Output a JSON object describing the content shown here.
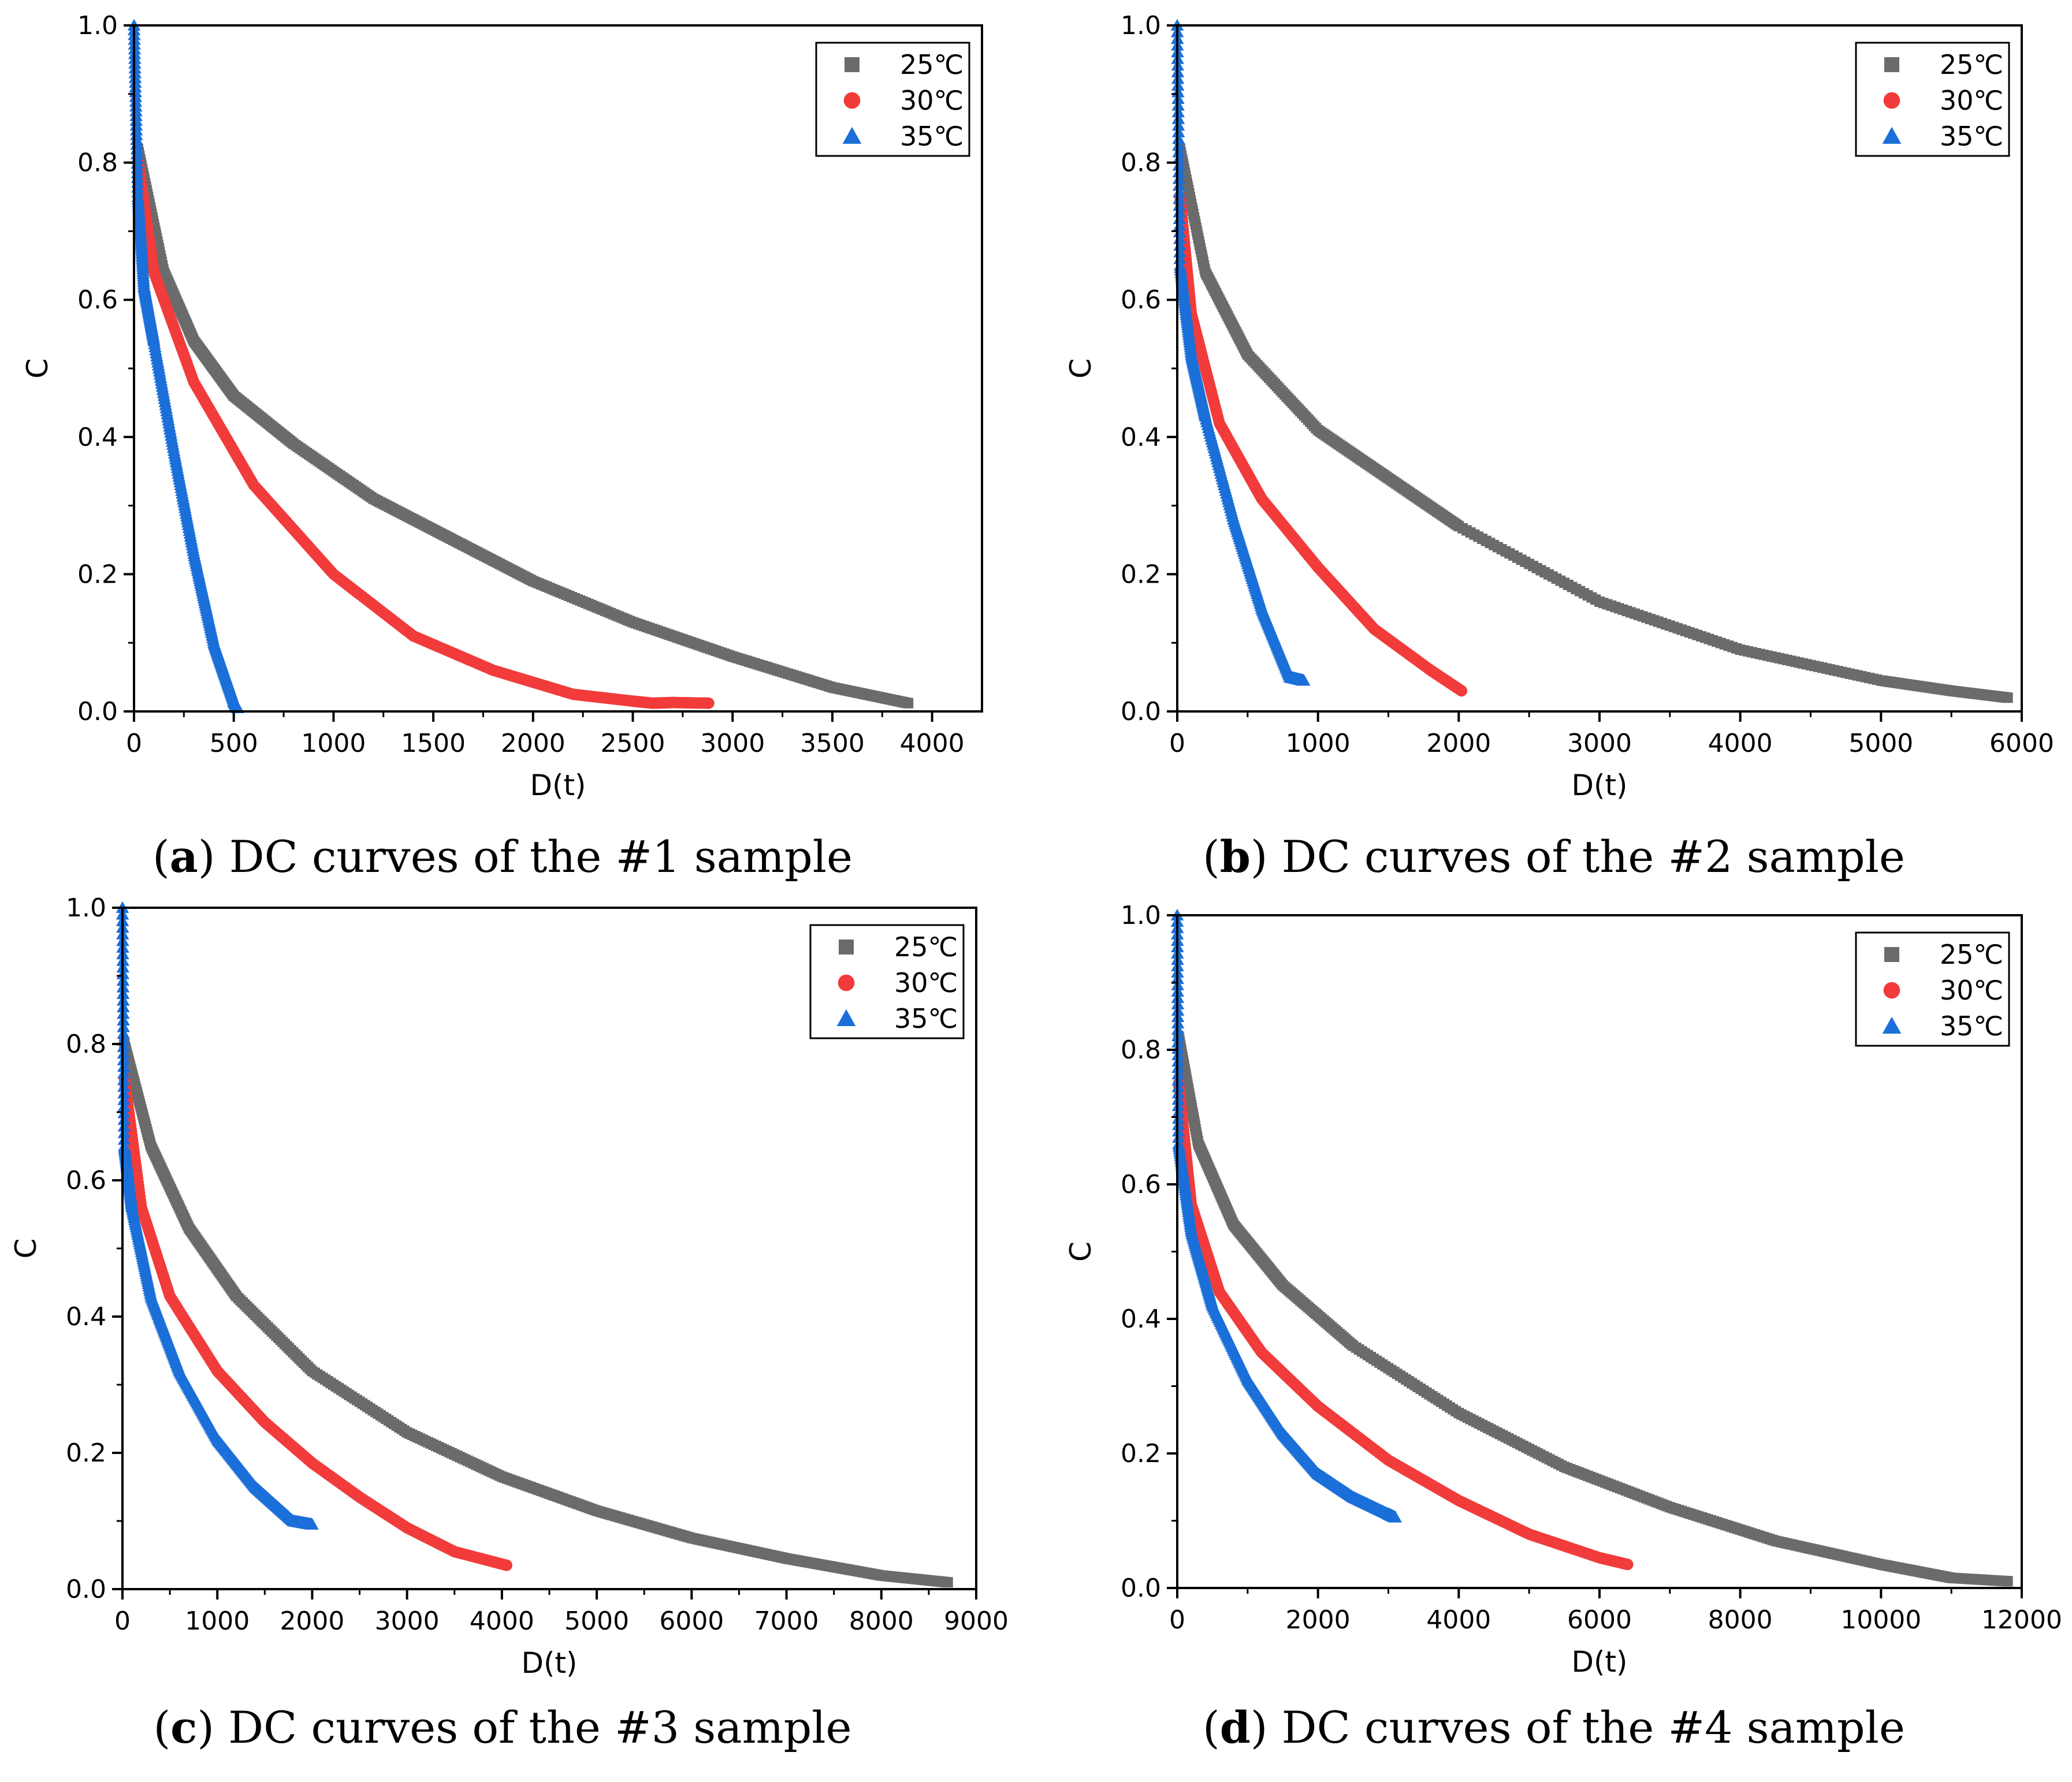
{
  "colors": {
    "25": "#6b6b6b",
    "30": "#f23b3b",
    "35": "#1a6fd8"
  },
  "legend": [
    {
      "label": "25℃",
      "marker": "square",
      "color": "#6b6b6b"
    },
    {
      "label": "30℃",
      "marker": "circle",
      "color": "#f23b3b"
    },
    {
      "label": "35℃",
      "marker": "triangle",
      "color": "#1a6fd8"
    }
  ],
  "chart_data": [
    {
      "type": "scatter",
      "caption_letter": "a",
      "caption_text": " DC curves of the #1 sample",
      "xlabel": "D(t)",
      "ylabel": "C",
      "xlim": [
        0,
        4250
      ],
      "ylim": [
        0,
        1.0
      ],
      "xticks": [
        0,
        500,
        1000,
        1500,
        2000,
        2500,
        3000,
        3500,
        4000
      ],
      "yticks": [
        "0.0",
        "0.2",
        "0.4",
        "0.6",
        "0.8",
        "1.0"
      ],
      "legend_position": "top-right",
      "series": [
        {
          "name": "25℃",
          "marker": "square",
          "color": "#6b6b6b",
          "x": [
            20,
            150,
            300,
            500,
            800,
            1200,
            1600,
            2000,
            2500,
            3000,
            3500,
            3880
          ],
          "y": [
            0.82,
            0.64,
            0.54,
            0.46,
            0.39,
            0.31,
            0.25,
            0.19,
            0.13,
            0.08,
            0.035,
            0.012
          ]
        },
        {
          "name": "30℃",
          "marker": "circle",
          "color": "#f23b3b",
          "x": [
            20,
            100,
            300,
            600,
            1000,
            1400,
            1800,
            2200,
            2500,
            2600,
            2700,
            2880
          ],
          "y": [
            0.8,
            0.64,
            0.48,
            0.33,
            0.2,
            0.11,
            0.06,
            0.025,
            0.015,
            0.012,
            0.013,
            0.012
          ]
        },
        {
          "name": "35℃",
          "marker": "triangle",
          "color": "#1a6fd8",
          "x": [
            0,
            20,
            50,
            100,
            200,
            300,
            400,
            500,
            520
          ],
          "y": [
            1.0,
            0.75,
            0.62,
            0.54,
            0.38,
            0.23,
            0.1,
            0.015,
            0.005
          ]
        }
      ]
    },
    {
      "type": "scatter",
      "caption_letter": "b",
      "caption_text": " DC curves of the #2 sample",
      "xlabel": "D(t)",
      "ylabel": "C",
      "xlim": [
        0,
        6000
      ],
      "ylim": [
        0,
        1.0
      ],
      "xticks": [
        0,
        1000,
        2000,
        3000,
        4000,
        5000,
        6000
      ],
      "yticks": [
        "0.0",
        "0.2",
        "0.4",
        "0.6",
        "0.8",
        "1.0"
      ],
      "legend_position": "top-right",
      "series": [
        {
          "name": "25℃",
          "marker": "square",
          "color": "#6b6b6b",
          "x": [
            20,
            200,
            500,
            1000,
            1500,
            2000,
            3000,
            4000,
            5000,
            5500,
            5900
          ],
          "y": [
            0.82,
            0.64,
            0.52,
            0.41,
            0.34,
            0.27,
            0.16,
            0.09,
            0.045,
            0.03,
            0.02
          ]
        },
        {
          "name": "30℃",
          "marker": "circle",
          "color": "#f23b3b",
          "x": [
            20,
            100,
            300,
            600,
            1000,
            1400,
            1800,
            2020
          ],
          "y": [
            0.75,
            0.58,
            0.42,
            0.31,
            0.21,
            0.12,
            0.06,
            0.03
          ]
        },
        {
          "name": "35℃",
          "marker": "triangle",
          "color": "#1a6fd8",
          "x": [
            0,
            20,
            100,
            200,
            400,
            600,
            800,
            900
          ],
          "y": [
            1.0,
            0.65,
            0.52,
            0.43,
            0.28,
            0.15,
            0.05,
            0.045
          ]
        }
      ]
    },
    {
      "type": "scatter",
      "caption_letter": "c",
      "caption_text": " DC curves of the #3 sample",
      "xlabel": "D(t)",
      "ylabel": "C",
      "xlim": [
        0,
        9000
      ],
      "ylim": [
        0,
        1.0
      ],
      "xticks": [
        0,
        1000,
        2000,
        3000,
        4000,
        5000,
        6000,
        7000,
        8000,
        9000
      ],
      "yticks": [
        "0.0",
        "0.2",
        "0.4",
        "0.6",
        "0.8",
        "1.0"
      ],
      "legend_position": "top-right",
      "series": [
        {
          "name": "25℃",
          "marker": "square",
          "color": "#6b6b6b",
          "x": [
            20,
            300,
            700,
            1200,
            2000,
            3000,
            4000,
            5000,
            6000,
            7000,
            8000,
            8700
          ],
          "y": [
            0.8,
            0.65,
            0.53,
            0.43,
            0.32,
            0.23,
            0.165,
            0.115,
            0.075,
            0.045,
            0.02,
            0.01
          ]
        },
        {
          "name": "30℃",
          "marker": "circle",
          "color": "#f23b3b",
          "x": [
            20,
            200,
            500,
            1000,
            1500,
            2000,
            2500,
            3000,
            3500,
            4050
          ],
          "y": [
            0.75,
            0.56,
            0.43,
            0.32,
            0.245,
            0.185,
            0.135,
            0.09,
            0.055,
            0.035
          ]
        },
        {
          "name": "35℃",
          "marker": "triangle",
          "color": "#1a6fd8",
          "x": [
            0,
            20,
            100,
            300,
            600,
            1000,
            1400,
            1800,
            2000
          ],
          "y": [
            1.0,
            0.65,
            0.56,
            0.43,
            0.32,
            0.22,
            0.15,
            0.1,
            0.095
          ]
        }
      ]
    },
    {
      "type": "scatter",
      "caption_letter": "d",
      "caption_text": " DC curves of the #4 sample",
      "xlabel": "D(t)",
      "ylabel": "C",
      "xlim": [
        0,
        12000
      ],
      "ylim": [
        0,
        1.0
      ],
      "xticks": [
        0,
        2000,
        4000,
        6000,
        8000,
        10000,
        12000
      ],
      "yticks": [
        "0.0",
        "0.2",
        "0.4",
        "0.6",
        "0.8",
        "1.0"
      ],
      "legend_position": "top-right",
      "series": [
        {
          "name": "25℃",
          "marker": "square",
          "color": "#6b6b6b",
          "x": [
            20,
            300,
            800,
            1500,
            2500,
            4000,
            5500,
            7000,
            8500,
            10000,
            11000,
            11800
          ],
          "y": [
            0.82,
            0.66,
            0.54,
            0.45,
            0.36,
            0.26,
            0.18,
            0.12,
            0.07,
            0.035,
            0.015,
            0.01
          ]
        },
        {
          "name": "30℃",
          "marker": "circle",
          "color": "#f23b3b",
          "x": [
            20,
            200,
            600,
            1200,
            2000,
            3000,
            4000,
            5000,
            6000,
            6400
          ],
          "y": [
            0.75,
            0.57,
            0.44,
            0.35,
            0.27,
            0.19,
            0.13,
            0.08,
            0.045,
            0.035
          ]
        },
        {
          "name": "35℃",
          "marker": "triangle",
          "color": "#1a6fd8",
          "x": [
            0,
            20,
            200,
            500,
            1000,
            1500,
            2000,
            2500,
            3000,
            3100
          ],
          "y": [
            1.0,
            0.66,
            0.53,
            0.42,
            0.31,
            0.23,
            0.17,
            0.135,
            0.11,
            0.105
          ]
        }
      ]
    }
  ]
}
